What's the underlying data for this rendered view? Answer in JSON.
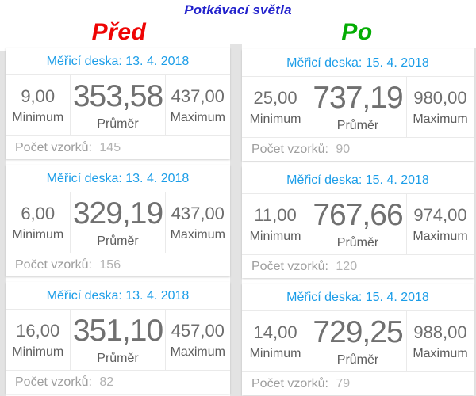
{
  "title": "Potkávací světla",
  "labels": {
    "measuring_board": "Měřicí deska:",
    "minimum": "Minimum",
    "average": "Průměr",
    "maximum": "Maximum",
    "sample_count": "Počet vzorků:"
  },
  "colors": {
    "title_blue": "#2121cc",
    "before_red": "#ee0404",
    "after_green": "#04ad04",
    "header_blue": "#1b9de8",
    "number_gray": "#6e6e6e",
    "samples_gray": "#9e9e9e"
  },
  "columns": [
    {
      "id": "before",
      "label": "Před",
      "label_color": "#ee0404",
      "cards": [
        {
          "date": "13. 4. 2018",
          "min": "9,00",
          "avg": "353,58",
          "max": "437,00",
          "samples": "145"
        },
        {
          "date": "13. 4. 2018",
          "min": "6,00",
          "avg": "329,19",
          "max": "437,00",
          "samples": "156"
        },
        {
          "date": "13. 4. 2018",
          "min": "16,00",
          "avg": "351,10",
          "max": "457,00",
          "samples": "82"
        }
      ]
    },
    {
      "id": "after",
      "label": "Po",
      "label_color": "#04ad04",
      "cards": [
        {
          "date": "15. 4. 2018",
          "min": "25,00",
          "avg": "737,19",
          "max": "980,00",
          "samples": "90"
        },
        {
          "date": "15. 4. 2018",
          "min": "11,00",
          "avg": "767,66",
          "max": "974,00",
          "samples": "120"
        },
        {
          "date": "15. 4. 2018",
          "min": "14,00",
          "avg": "729,25",
          "max": "988,00",
          "samples": "79"
        }
      ]
    }
  ]
}
